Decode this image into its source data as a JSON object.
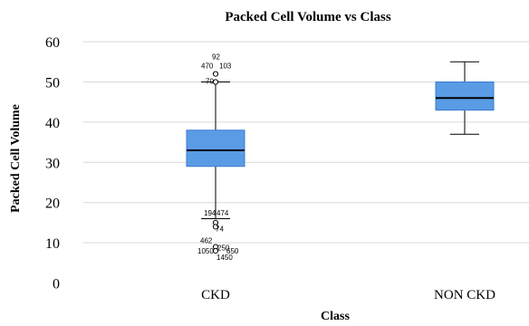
{
  "chart_data": {
    "type": "boxplot",
    "title": "Packed Cell Volume vs Class",
    "xlabel": "Class",
    "ylabel": "Packed Cell Volume",
    "ylim": [
      0,
      62
    ],
    "yticks": [
      "0",
      "10",
      "20",
      "30",
      "40",
      "50",
      "60"
    ],
    "grid": true,
    "box_color": "#5A9BE6",
    "categories": [
      "CKD",
      "NON CKD"
    ],
    "boxes": [
      {
        "category": "CKD",
        "whisker_low": 16,
        "q1": 29,
        "median": 33,
        "q3": 38,
        "whisker_high": 50,
        "outliers": [
          {
            "value": 52,
            "labels": [
              "92",
              "470",
              "103"
            ]
          },
          {
            "value": 50,
            "labels": [
              "70"
            ]
          },
          {
            "value": 15,
            "labels": [
              "194",
              "474"
            ]
          },
          {
            "value": 14,
            "labels": [
              "74"
            ]
          },
          {
            "value": 9,
            "labels": [
              "462",
              "250"
            ]
          },
          {
            "value": 8,
            "labels": [
              "1050",
              "650",
              "1450"
            ]
          }
        ]
      },
      {
        "category": "NON CKD",
        "whisker_low": 37,
        "q1": 43,
        "median": 46,
        "q3": 50,
        "whisker_high": 55,
        "outliers": []
      }
    ]
  }
}
